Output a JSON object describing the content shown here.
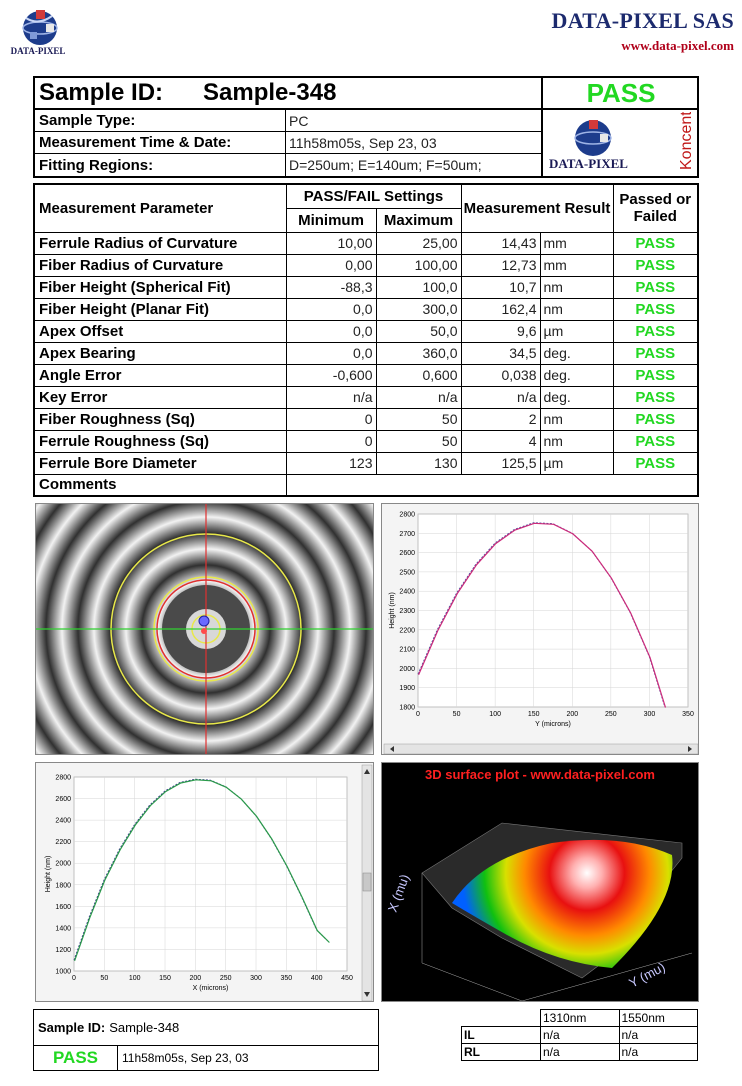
{
  "header": {
    "logo_text": "DATA-PIXEL",
    "company": "DATA-PIXEL SAS",
    "website": "www.data-pixel.com"
  },
  "info": {
    "sample_id_label": "Sample ID:",
    "sample_id": "Sample-348",
    "overall_result": "PASS",
    "rows": [
      {
        "label": "Sample Type:",
        "value": "PC"
      },
      {
        "label": "Measurement Time & Date:",
        "value": "11h58m05s, Sep 23, 03"
      },
      {
        "label": "Fitting Regions:",
        "value": "D=250um;   E=140um;   F=50um;"
      }
    ],
    "badge_logo_text": "DATA-PIXEL",
    "badge_product": "Koncentrik"
  },
  "params": {
    "headers": {
      "param": "Measurement Parameter",
      "settings": "PASS/FAIL Settings",
      "minimum": "Minimum",
      "maximum": "Maximum",
      "result": "Measurement Result",
      "passed": "Passed or Failed"
    },
    "rows": [
      {
        "name": "Ferrule Radius of Curvature",
        "min": "10,00",
        "max": "25,00",
        "value": "14,43",
        "unit": "mm",
        "result": "PASS"
      },
      {
        "name": "Fiber Radius of Curvature",
        "min": "0,00",
        "max": "100,00",
        "value": "12,73",
        "unit": "mm",
        "result": "PASS"
      },
      {
        "name": "Fiber Height (Spherical Fit)",
        "min": "-88,3",
        "max": "100,0",
        "value": "10,7",
        "unit": "nm",
        "result": "PASS"
      },
      {
        "name": "Fiber Height (Planar Fit)",
        "min": "0,0",
        "max": "300,0",
        "value": "162,4",
        "unit": "nm",
        "result": "PASS"
      },
      {
        "name": "Apex Offset",
        "min": "0,0",
        "max": "50,0",
        "value": "9,6",
        "unit": "µm",
        "result": "PASS"
      },
      {
        "name": "Apex Bearing",
        "min": "0,0",
        "max": "360,0",
        "value": "34,5",
        "unit": "deg.",
        "result": "PASS"
      },
      {
        "name": "Angle Error",
        "min": "-0,600",
        "max": "0,600",
        "value": "0,038",
        "unit": "deg.",
        "result": "PASS"
      },
      {
        "name": "Key Error",
        "min": "n/a",
        "max": "n/a",
        "value": "n/a",
        "unit": "deg.",
        "result": "PASS"
      },
      {
        "name": "Fiber Roughness (Sq)",
        "min": "0",
        "max": "50",
        "value": "2",
        "unit": "nm",
        "result": "PASS"
      },
      {
        "name": "Ferrule Roughness (Sq)",
        "min": "0",
        "max": "50",
        "value": "4",
        "unit": "nm",
        "result": "PASS"
      },
      {
        "name": "Ferrule Bore Diameter",
        "min": "123",
        "max": "130",
        "value": "125,5",
        "unit": "µm",
        "result": "PASS"
      }
    ],
    "comments_label": "Comments"
  },
  "plots": {
    "plot1": {
      "ylabel": "Height (nm)",
      "xlabel": "Y (microns)",
      "yticks": [
        "2800",
        "2700",
        "2600",
        "2500",
        "2400",
        "2300",
        "2200",
        "2100",
        "2000",
        "1900",
        "1800"
      ],
      "xticks": [
        "0",
        "50",
        "100",
        "150",
        "200",
        "250",
        "300",
        "350"
      ]
    },
    "plot2": {
      "ylabel": "Height (nm)",
      "xlabel": "X (microns)",
      "yticks": [
        "2800",
        "2600",
        "2400",
        "2200",
        "2000",
        "1800",
        "1600",
        "1400",
        "1200",
        "1000"
      ],
      "xticks": [
        "0",
        "50",
        "100",
        "150",
        "200",
        "250",
        "300",
        "350",
        "400",
        "450"
      ]
    },
    "surface_title": "3D surface plot - www.data-pixel.com",
    "surface_axis_x": "X (mu)",
    "surface_axis_y": "Y (mu)"
  },
  "chart_data": [
    {
      "type": "line",
      "xlabel": "Y (microns)",
      "ylabel": "Height (nm)",
      "xlim": [
        0,
        350
      ],
      "ylim": [
        1800,
        2800
      ],
      "series": [
        {
          "x": [
            0,
            25,
            50,
            75,
            100,
            125,
            150,
            175,
            200,
            225,
            250,
            275,
            300,
            320
          ],
          "values": [
            1970,
            2200,
            2390,
            2540,
            2650,
            2720,
            2755,
            2750,
            2700,
            2610,
            2470,
            2290,
            2060,
            1800
          ]
        }
      ],
      "color": "#cc2a7a",
      "fit_color": "#5050a0"
    },
    {
      "type": "line",
      "xlabel": "X (microns)",
      "ylabel": "Height (nm)",
      "xlim": [
        0,
        450
      ],
      "ylim": [
        1000,
        2800
      ],
      "series": [
        {
          "x": [
            0,
            25,
            50,
            75,
            100,
            125,
            150,
            175,
            200,
            225,
            250,
            275,
            300,
            325,
            350,
            375,
            400,
            420
          ],
          "values": [
            1100,
            1500,
            1850,
            2130,
            2360,
            2540,
            2670,
            2750,
            2780,
            2770,
            2710,
            2600,
            2440,
            2230,
            1980,
            1690,
            1380,
            1270
          ]
        }
      ],
      "color": "#2a9a4a",
      "fit_color": "#3a3a8a"
    }
  ],
  "bottom": {
    "sample_id_label": "Sample ID:",
    "sample_id": "Sample-348",
    "result": "PASS",
    "time": "11h58m05s, Sep 23, 03",
    "wl1": "1310nm",
    "wl2": "1550nm",
    "il_label": "IL",
    "rl_label": "RL",
    "il1": "n/a",
    "il2": "n/a",
    "rl1": "n/a",
    "rl2": "n/a"
  }
}
